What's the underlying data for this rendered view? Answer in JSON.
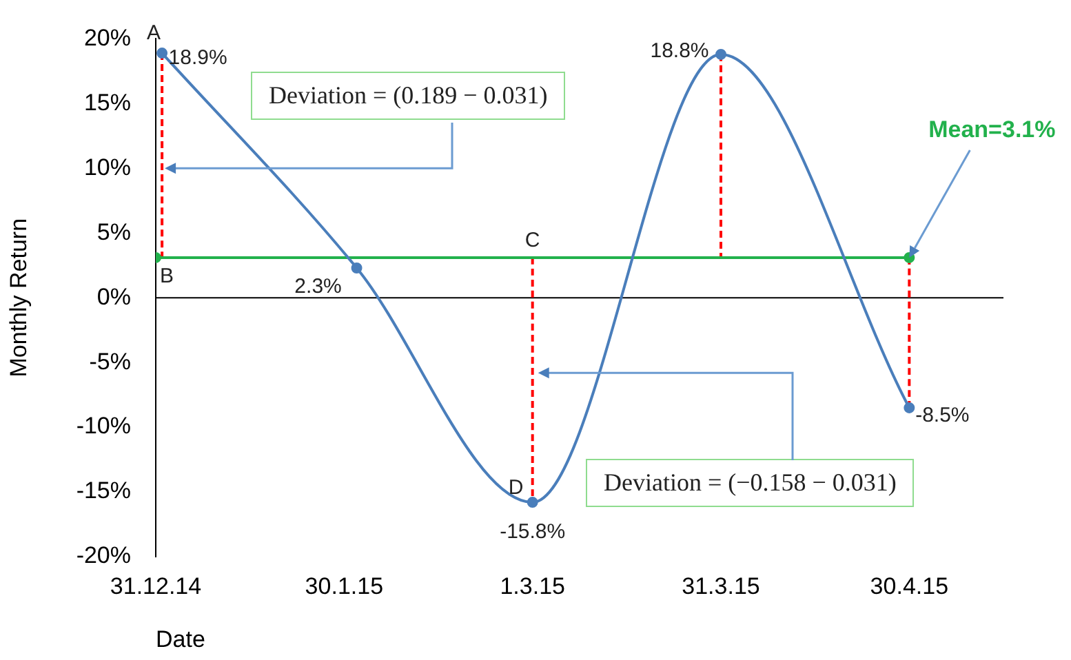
{
  "chart_data": {
    "type": "line",
    "ylabel": "Monthly Return",
    "xlabel": "Date",
    "x": [
      "2015-01-01",
      "2015-02-01",
      "2015-03-01",
      "2015-03-31",
      "2015-04-30"
    ],
    "xlim": [
      "2014-12-31",
      "2015-05-15"
    ],
    "xticks": [
      {
        "value": "2014-12-31",
        "label": "31.12.14"
      },
      {
        "value": "2015-01-30",
        "label": "30.1.15"
      },
      {
        "value": "2015-03-01",
        "label": "1.3.15"
      },
      {
        "value": "2015-03-31",
        "label": "31.3.15"
      },
      {
        "value": "2015-04-30",
        "label": "30.4.15"
      }
    ],
    "ylim": [
      -20,
      20
    ],
    "yticks": [
      {
        "value": -20,
        "label": "-20%"
      },
      {
        "value": -15,
        "label": "-15%"
      },
      {
        "value": -10,
        "label": "-10%"
      },
      {
        "value": -5,
        "label": "-5%"
      },
      {
        "value": 0,
        "label": "0%"
      },
      {
        "value": 5,
        "label": "5%"
      },
      {
        "value": 10,
        "label": "10%"
      },
      {
        "value": 15,
        "label": "15%"
      },
      {
        "value": 20,
        "label": "20%"
      }
    ],
    "series": [
      {
        "color": "#4a7ebb",
        "values": [
          18.9,
          2.3,
          -15.8,
          18.8,
          -8.5
        ],
        "value_labels": [
          "18.9%",
          "2.3%",
          "-15.8%",
          "18.8%",
          "-8.5%"
        ],
        "marker": "circle"
      },
      {
        "type": "line",
        "color": "#22b14c",
        "x": [
          "2014-12-31",
          "2015-04-30"
        ],
        "values": [
          3.1,
          3.1
        ],
        "marker": "circle"
      },
      {
        "type": "line",
        "color": "#ff0000",
        "x": [
          "2015-01-01",
          "2015-01-01"
        ],
        "values": [
          18.9,
          3.1
        ],
        "line_style": "dashed",
        "marker": "none"
      },
      {
        "type": "line",
        "color": "#ff0000",
        "x": [
          "2015-03-01",
          "2015-03-01"
        ],
        "values": [
          3.1,
          -15.8
        ],
        "line_style": "dashed",
        "marker": "none"
      },
      {
        "type": "line",
        "color": "#ff0000",
        "x": [
          "2015-03-31",
          "2015-03-31"
        ],
        "values": [
          18.8,
          3.1
        ],
        "line_style": "dashed",
        "marker": "none"
      },
      {
        "type": "line",
        "color": "#ff0000",
        "x": [
          "2015-04-30",
          "2015-04-30"
        ],
        "values": [
          3.1,
          -8.5
        ],
        "line_style": "dashed",
        "marker": "none"
      }
    ],
    "annotations": [
      {
        "text": "A",
        "x": "2015-01-01",
        "y": 18.9
      },
      {
        "text": "B",
        "x": "2014-12-31",
        "y": 3.1
      },
      {
        "text": "C",
        "x": "2015-03-01",
        "y": 3.1
      },
      {
        "text": "D",
        "x": "2015-03-01",
        "y": -15.8
      },
      {
        "text": "Mean=3.1%",
        "x": "2015-04-30",
        "y": 3.1
      },
      "Deviation = (0.189 − 0.031)",
      "Deviation = (−0.158 − 0.031)"
    ]
  }
}
